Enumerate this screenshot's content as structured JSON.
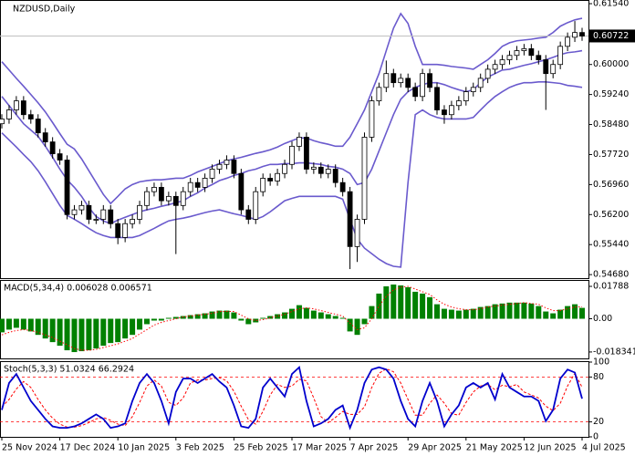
{
  "chart_data": [
    {
      "type": "candlestick",
      "title": "NZDUSD,Daily",
      "categories": [
        "25 Nov 2024",
        null,
        null,
        null,
        null,
        null,
        null,
        null,
        "17 Dec 2024",
        null,
        null,
        null,
        null,
        null,
        null,
        null,
        "10 Jan 2025",
        null,
        null,
        null,
        null,
        null,
        null,
        null,
        "3 Feb 2025",
        null,
        null,
        null,
        null,
        null,
        null,
        null,
        "25 Feb 2025",
        null,
        null,
        null,
        null,
        null,
        null,
        null,
        "17 Mar 2025",
        null,
        null,
        null,
        null,
        null,
        null,
        null,
        "7 Apr 2025",
        null,
        null,
        null,
        null,
        null,
        null,
        null,
        "29 Apr 2025",
        null,
        null,
        null,
        null,
        null,
        null,
        null,
        "21 May 2025",
        null,
        null,
        null,
        null,
        null,
        null,
        null,
        "12 Jun 2025",
        null,
        null,
        null,
        null,
        null,
        null,
        null,
        "4 Jul 2025"
      ],
      "open": [
        0.585,
        0.5862,
        0.5885,
        0.5908,
        0.5873,
        0.5862,
        0.5827,
        0.5804,
        0.5774,
        0.5758,
        0.562,
        0.5632,
        0.5643,
        0.5608,
        0.5608,
        0.5632,
        0.5597,
        0.5562,
        0.5597,
        0.5608,
        0.5643,
        0.5678,
        0.5689,
        0.5655,
        0.5666,
        0.5643,
        0.5678,
        0.5701,
        0.5689,
        0.5712,
        0.5735,
        0.5747,
        0.5758,
        0.5724,
        0.5632,
        0.5608,
        0.5678,
        0.5712,
        0.5705,
        0.5724,
        0.5747,
        0.5793,
        0.5816,
        0.5735,
        0.574,
        0.5724,
        0.5735,
        0.5701,
        0.5678,
        0.5539,
        0.5608,
        0.5816,
        0.5908,
        0.5942,
        0.5977,
        0.5954,
        0.5965,
        0.5942,
        0.5919,
        0.5977,
        0.5942,
        0.5885,
        0.5873,
        0.5896,
        0.5908,
        0.5931,
        0.5942,
        0.5965,
        0.5988,
        0.6,
        0.6012,
        0.6023,
        0.6035,
        0.604,
        0.6023,
        0.6012,
        0.5977,
        0.6,
        0.6046,
        0.6069,
        0.6081
      ],
      "high": [
        0.5874,
        0.5897,
        0.592,
        0.592,
        0.5885,
        0.5874,
        0.5839,
        0.5816,
        0.5786,
        0.577,
        0.5644,
        0.5655,
        0.5655,
        0.562,
        0.5644,
        0.5644,
        0.5609,
        0.5609,
        0.562,
        0.5655,
        0.569,
        0.5701,
        0.5701,
        0.5678,
        0.5678,
        0.569,
        0.5713,
        0.5713,
        0.5724,
        0.5747,
        0.5759,
        0.577,
        0.577,
        0.5736,
        0.5644,
        0.569,
        0.5724,
        0.5724,
        0.5736,
        0.5759,
        0.5805,
        0.5828,
        0.5828,
        0.5752,
        0.5752,
        0.5747,
        0.5747,
        0.5713,
        0.569,
        0.562,
        0.5828,
        0.592,
        0.5954,
        0.601,
        0.5989,
        0.5977,
        0.5977,
        0.5954,
        0.5989,
        0.5989,
        0.5954,
        0.5897,
        0.5908,
        0.592,
        0.5943,
        0.5954,
        0.5977,
        0.6,
        0.6012,
        0.6024,
        0.6035,
        0.6047,
        0.6052,
        0.6052,
        0.6035,
        0.6024,
        0.6012,
        0.6058,
        0.6081,
        0.611,
        0.6093
      ],
      "low": [
        0.5838,
        0.585,
        0.5873,
        0.5861,
        0.585,
        0.5815,
        0.5792,
        0.5762,
        0.5746,
        0.5608,
        0.5608,
        0.562,
        0.5596,
        0.5596,
        0.5596,
        0.5585,
        0.5545,
        0.555,
        0.5585,
        0.5596,
        0.5631,
        0.5666,
        0.5643,
        0.5643,
        0.552,
        0.5631,
        0.5666,
        0.5677,
        0.5677,
        0.57,
        0.5723,
        0.5735,
        0.5712,
        0.562,
        0.5596,
        0.5596,
        0.5666,
        0.5693,
        0.5693,
        0.5712,
        0.5735,
        0.5781,
        0.5723,
        0.5723,
        0.5712,
        0.5712,
        0.5689,
        0.5666,
        0.5482,
        0.55,
        0.5596,
        0.5804,
        0.5896,
        0.593,
        0.5942,
        0.5942,
        0.593,
        0.5907,
        0.5907,
        0.593,
        0.5873,
        0.585,
        0.5861,
        0.5884,
        0.5896,
        0.5919,
        0.593,
        0.5953,
        0.5976,
        0.5988,
        0.6,
        0.6011,
        0.6023,
        0.6011,
        0.6,
        0.5885,
        0.5965,
        0.5988,
        0.6034,
        0.6057,
        0.606
      ],
      "close": [
        0.5862,
        0.5885,
        0.5908,
        0.5873,
        0.5862,
        0.5827,
        0.5804,
        0.5774,
        0.5758,
        0.562,
        0.5632,
        0.5643,
        0.5608,
        0.5608,
        0.5632,
        0.5597,
        0.5562,
        0.5597,
        0.5608,
        0.5643,
        0.5678,
        0.5689,
        0.5655,
        0.5666,
        0.5643,
        0.5678,
        0.5701,
        0.5689,
        0.5712,
        0.5735,
        0.5747,
        0.5758,
        0.5724,
        0.5632,
        0.5608,
        0.5678,
        0.5712,
        0.5705,
        0.5724,
        0.5747,
        0.5793,
        0.5816,
        0.5735,
        0.574,
        0.5724,
        0.5735,
        0.5701,
        0.5678,
        0.5539,
        0.5608,
        0.5816,
        0.5908,
        0.5942,
        0.5977,
        0.5954,
        0.5965,
        0.5942,
        0.5919,
        0.5977,
        0.5942,
        0.5885,
        0.5873,
        0.5896,
        0.5908,
        0.5931,
        0.5942,
        0.5965,
        0.5988,
        0.6,
        0.6012,
        0.6023,
        0.6035,
        0.604,
        0.6023,
        0.6012,
        0.5977,
        0.6,
        0.6046,
        0.6069,
        0.6081,
        0.6072
      ],
      "up_color": "#ffffff",
      "down_color": "#000000",
      "outline_color": "#000000",
      "bands": [
        {
          "color": "#6a5acd",
          "values": [
            0.6007,
            0.5986,
            0.5965,
            0.5945,
            0.5924,
            0.5903,
            0.588,
            0.5853,
            0.5825,
            0.5798,
            0.5786,
            0.5761,
            0.5731,
            0.5701,
            0.5671,
            0.5648,
            0.5666,
            0.5685,
            0.5696,
            0.5703,
            0.5706,
            0.5708,
            0.5708,
            0.571,
            0.5712,
            0.5712,
            0.5719,
            0.5728,
            0.5735,
            0.5742,
            0.5749,
            0.5756,
            0.5761,
            0.5765,
            0.577,
            0.5775,
            0.5779,
            0.5784,
            0.5791,
            0.58,
            0.5807,
            0.5814,
            0.5814,
            0.5807,
            0.5802,
            0.5798,
            0.5793,
            0.5793,
            0.5816,
            0.585,
            0.5885,
            0.5931,
            0.5977,
            0.6035,
            0.6092,
            0.6129,
            0.6104,
            0.6046,
            0.6,
            0.6,
            0.6,
            0.5998,
            0.5995,
            0.5993,
            0.5991,
            0.5988,
            0.6,
            0.6012,
            0.6028,
            0.6046,
            0.6055,
            0.606,
            0.6062,
            0.6064,
            0.6067,
            0.6069,
            0.6081,
            0.6097,
            0.6106,
            0.6113,
            0.6117
          ]
        },
        {
          "color": "#6a5acd",
          "values": [
            0.5919,
            0.5896,
            0.5873,
            0.585,
            0.5834,
            0.5818,
            0.5793,
            0.5765,
            0.5735,
            0.5708,
            0.5689,
            0.5666,
            0.5638,
            0.5615,
            0.5604,
            0.5597,
            0.5606,
            0.5613,
            0.562,
            0.5627,
            0.5632,
            0.5636,
            0.5641,
            0.5645,
            0.565,
            0.5655,
            0.5666,
            0.5675,
            0.5687,
            0.5696,
            0.5706,
            0.5712,
            0.5719,
            0.5724,
            0.5731,
            0.5735,
            0.5742,
            0.5747,
            0.5747,
            0.5749,
            0.5749,
            0.5751,
            0.5751,
            0.5749,
            0.5747,
            0.5742,
            0.574,
            0.5735,
            0.5724,
            0.5696,
            0.5701,
            0.5735,
            0.5781,
            0.5827,
            0.5873,
            0.5912,
            0.5931,
            0.5942,
            0.5949,
            0.5954,
            0.5954,
            0.5949,
            0.5942,
            0.5936,
            0.5931,
            0.5936,
            0.5954,
            0.5968,
            0.5977,
            0.5986,
            0.5988,
            0.5993,
            0.5998,
            0.6002,
            0.6007,
            0.6012,
            0.6018,
            0.6025,
            0.603,
            0.6032,
            0.6035
          ]
        },
        {
          "color": "#6a5acd",
          "values": [
            0.5827,
            0.5809,
            0.5791,
            0.5772,
            0.5754,
            0.5731,
            0.5703,
            0.5673,
            0.5643,
            0.5618,
            0.5608,
            0.5597,
            0.5585,
            0.5574,
            0.5567,
            0.5562,
            0.5562,
            0.5562,
            0.5562,
            0.5567,
            0.5576,
            0.5585,
            0.5595,
            0.5604,
            0.5608,
            0.5611,
            0.5615,
            0.562,
            0.5625,
            0.5629,
            0.5632,
            0.5627,
            0.5622,
            0.5618,
            0.5613,
            0.5608,
            0.5615,
            0.5627,
            0.5641,
            0.5655,
            0.5661,
            0.5666,
            0.5666,
            0.5666,
            0.5666,
            0.5666,
            0.5666,
            0.5659,
            0.5608,
            0.5558,
            0.5535,
            0.5521,
            0.5507,
            0.5496,
            0.5489,
            0.5487,
            0.5701,
            0.5873,
            0.5885,
            0.5873,
            0.5866,
            0.5862,
            0.5862,
            0.5862,
            0.5862,
            0.5866,
            0.5885,
            0.5903,
            0.5919,
            0.5931,
            0.5942,
            0.5949,
            0.5954,
            0.5954,
            0.5956,
            0.5956,
            0.5954,
            0.5952,
            0.5947,
            0.5945,
            0.5942
          ]
        }
      ],
      "price_line": {
        "value": 0.60722,
        "label": "0.60722"
      },
      "ylim": [
        0.5459,
        0.6161
      ],
      "yticks": [
        {
          "value": 0.6154,
          "label": "0.61540"
        },
        {
          "value": 0.6,
          "label": "0.60000"
        },
        {
          "value": 0.5924,
          "label": "0.59240"
        },
        {
          "value": 0.5848,
          "label": "0.58480"
        },
        {
          "value": 0.5772,
          "label": "0.57720"
        },
        {
          "value": 0.5696,
          "label": "0.56960"
        },
        {
          "value": 0.562,
          "label": "0.56200"
        },
        {
          "value": 0.5544,
          "label": "0.55440"
        },
        {
          "value": 0.5468,
          "label": "0.54680"
        }
      ]
    },
    {
      "type": "macd",
      "title": "MACD(5,34,4) 0.006028 0.006571",
      "histogram": {
        "color": "#008000",
        "values": [
          -0.0075,
          -0.006,
          -0.005,
          -0.006,
          -0.007,
          -0.0089,
          -0.0109,
          -0.0129,
          -0.0149,
          -0.0174,
          -0.0184,
          -0.0179,
          -0.0174,
          -0.0164,
          -0.0149,
          -0.0134,
          -0.0129,
          -0.0109,
          -0.0089,
          -0.006,
          -0.003,
          -0.001,
          -0.001,
          0.0005,
          0.001,
          0.0015,
          0.002,
          0.0025,
          0.003,
          0.004,
          0.0045,
          0.0045,
          0.0035,
          -0.001,
          -0.003,
          -0.002,
          0.0005,
          0.0015,
          0.0025,
          0.0035,
          0.0055,
          0.0075,
          0.006,
          0.0045,
          0.0035,
          0.0025,
          0.0015,
          0.0005,
          -0.007,
          -0.0089,
          -0.003,
          0.007,
          0.0139,
          0.0179,
          0.0189,
          0.0184,
          0.0174,
          0.0149,
          0.0139,
          0.0119,
          0.008,
          0.0055,
          0.005,
          0.0045,
          0.005,
          0.0055,
          0.0065,
          0.007,
          0.008,
          0.0084,
          0.0089,
          0.0089,
          0.0089,
          0.0084,
          0.007,
          0.004,
          0.003,
          0.005,
          0.007,
          0.008,
          0.006
        ]
      },
      "signal": {
        "color": "#ff0000",
        "values": [
          -0.0089,
          -0.0075,
          -0.0065,
          -0.006,
          -0.0065,
          -0.0075,
          -0.0089,
          -0.0104,
          -0.0124,
          -0.0144,
          -0.0164,
          -0.0174,
          -0.0174,
          -0.0169,
          -0.0159,
          -0.0149,
          -0.0139,
          -0.0124,
          -0.0109,
          -0.0084,
          -0.006,
          -0.0035,
          -0.002,
          -0.001,
          0,
          0.001,
          0.0015,
          0.002,
          0.0025,
          0.003,
          0.004,
          0.004,
          0.004,
          0.002,
          0,
          -0.001,
          -0.0005,
          0.0005,
          0.0015,
          0.0025,
          0.004,
          0.0055,
          0.006,
          0.0055,
          0.0045,
          0.0035,
          0.0025,
          0.0015,
          -0.0025,
          -0.006,
          -0.005,
          0,
          0.007,
          0.0124,
          0.0159,
          0.0174,
          0.0179,
          0.0164,
          0.0149,
          0.0134,
          0.0104,
          0.008,
          0.0065,
          0.0055,
          0.005,
          0.005,
          0.0055,
          0.0065,
          0.007,
          0.0075,
          0.008,
          0.0084,
          0.0089,
          0.0084,
          0.008,
          0.006,
          0.0045,
          0.0045,
          0.0055,
          0.0065,
          0.0066
        ]
      },
      "ylim": [
        -0.0219,
        0.0209
      ],
      "yticks": [
        0.01788,
        {
          "value": 0,
          "label": "0.00"
        },
        -0.018341
      ]
    },
    {
      "type": "stochastic",
      "title": "Stoch(5,3,3) 51.0324 66.2924",
      "main": {
        "color": "#0000cd",
        "values": [
          36,
          72,
          84,
          66,
          48,
          36,
          24,
          14,
          12,
          12,
          14,
          18,
          24,
          30,
          24,
          12,
          14,
          18,
          48,
          72,
          84,
          72,
          48,
          18,
          60,
          78,
          78,
          72,
          78,
          84,
          74,
          66,
          42,
          14,
          12,
          24,
          66,
          78,
          66,
          54,
          84,
          93,
          48,
          14,
          18,
          24,
          36,
          42,
          12,
          36,
          72,
          90,
          93,
          90,
          78,
          48,
          24,
          14,
          48,
          72,
          48,
          14,
          30,
          42,
          66,
          72,
          66,
          72,
          50,
          84,
          66,
          60,
          54,
          54,
          48,
          21,
          36,
          78,
          90,
          86,
          51.0324
        ]
      },
      "signal": {
        "color": "#ff0000",
        "values": [
          40,
          50,
          64,
          74,
          66,
          50,
          36,
          25,
          17,
          13,
          13,
          15,
          19,
          24,
          26,
          22,
          17,
          15,
          27,
          46,
          68,
          76,
          68,
          46,
          42,
          52,
          72,
          76,
          76,
          78,
          79,
          75,
          61,
          41,
          23,
          17,
          34,
          56,
          70,
          66,
          68,
          77,
          75,
          52,
          27,
          19,
          26,
          34,
          30,
          30,
          40,
          66,
          85,
          91,
          87,
          72,
          50,
          29,
          29,
          45,
          56,
          45,
          31,
          29,
          46,
          60,
          68,
          70,
          63,
          69,
          67,
          70,
          60,
          56,
          52,
          41,
          35,
          45,
          68,
          85,
          66.2924
        ]
      },
      "levels": [
        80,
        20
      ],
      "level_color": "#ff0000",
      "ylim": [
        0,
        100
      ],
      "yticks": [
        100,
        80,
        20,
        0
      ]
    }
  ]
}
